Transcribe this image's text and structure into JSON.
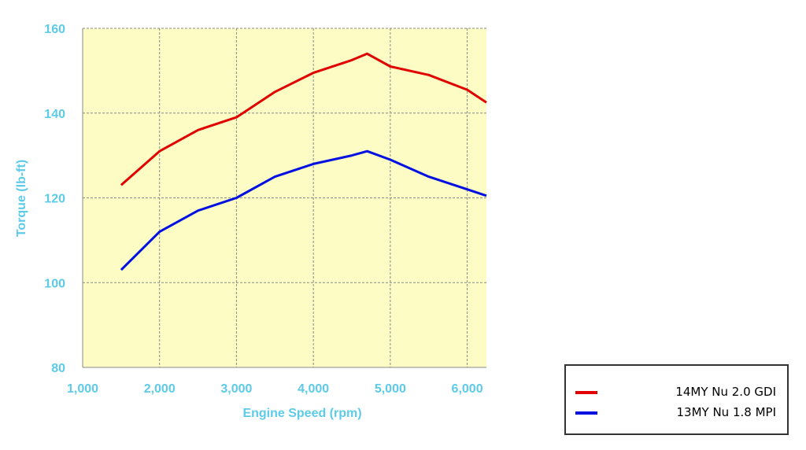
{
  "chart_data": {
    "type": "line",
    "title": "",
    "xlabel": "Engine Speed (rpm)",
    "ylabel": "Torque (lb-ft)",
    "xlim": [
      1000,
      6250
    ],
    "ylim": [
      80,
      160
    ],
    "xticks": [
      1000,
      2000,
      3000,
      4000,
      5000,
      6000
    ],
    "xtick_labels": [
      "1,000",
      "2,000",
      "3,000",
      "4,000",
      "5,000",
      "6,000"
    ],
    "yticks": [
      80,
      100,
      120,
      140,
      160
    ],
    "ytick_labels": [
      "80",
      "100",
      "120",
      "140",
      "160"
    ],
    "grid": true,
    "legend_position": "bottom-right, outside plot",
    "plot_background": "#fcfcc4",
    "axis_text_color": "#5ccbe8",
    "series": [
      {
        "name": "14MY Nu 2.0 GDI",
        "color": "#e00000",
        "x": [
          1500,
          2000,
          2500,
          3000,
          3500,
          4000,
          4500,
          4700,
          5000,
          5500,
          6000,
          6250
        ],
        "y": [
          123,
          131,
          136,
          139,
          145,
          149.5,
          152.5,
          154,
          151,
          149,
          145.5,
          142.5
        ]
      },
      {
        "name": "13MY Nu 1.8 MPI",
        "color": "#0010e0",
        "x": [
          1500,
          2000,
          2500,
          3000,
          3500,
          4000,
          4500,
          4700,
          5000,
          5500,
          6000,
          6250
        ],
        "y": [
          103,
          112,
          117,
          120,
          125,
          128,
          130,
          131,
          129,
          125,
          122,
          120.5
        ]
      }
    ]
  }
}
